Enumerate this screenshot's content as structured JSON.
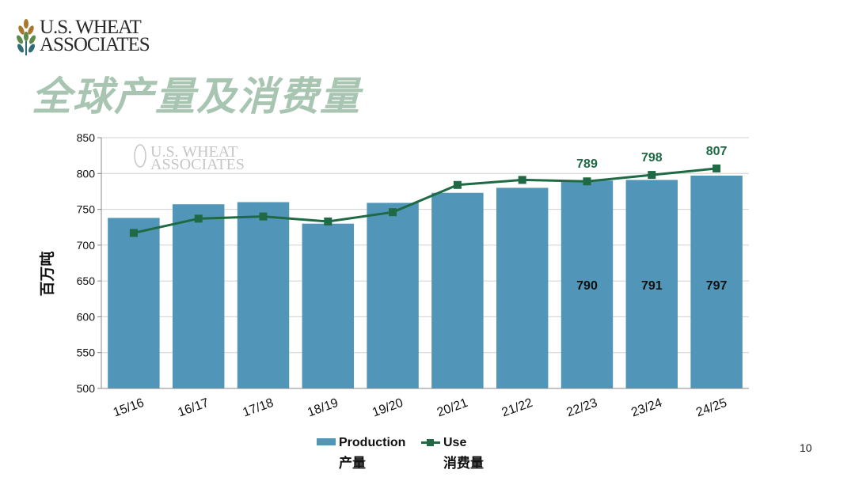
{
  "header": {
    "logo_line1": "U.S. WHEAT",
    "logo_line2": "ASSOCIATES",
    "title": "全球产量及消费量",
    "page_number": "10"
  },
  "chart_data": {
    "type": "bar",
    "title": "全球产量及消费量",
    "ylabel": "百万吨",
    "xlabel": "",
    "ylim": [
      500,
      850
    ],
    "yticks": [
      500,
      550,
      600,
      650,
      700,
      750,
      800,
      850
    ],
    "grid": true,
    "legend_position": "bottom",
    "watermark": [
      "U.S. WHEAT",
      "ASSOCIATES"
    ],
    "categories": [
      "15/16",
      "16/17",
      "17/18",
      "18/19",
      "19/20",
      "20/21",
      "21/22",
      "22/23",
      "23/24",
      "24/25"
    ],
    "series": [
      {
        "name": "Production",
        "name_cn": "产量",
        "kind": "bar",
        "color": "#5195b8",
        "values": [
          738,
          757,
          760,
          730,
          759,
          773,
          780,
          790,
          791,
          797
        ],
        "labels": [
          "",
          "",
          "",
          "",
          "",
          "",
          "",
          "790",
          "791",
          "797"
        ]
      },
      {
        "name": "Use",
        "name_cn": "消费量",
        "kind": "line",
        "color": "#1f6a45",
        "values": [
          717,
          737,
          740,
          733,
          746,
          784,
          791,
          789,
          798,
          807
        ],
        "labels": [
          "",
          "",
          "",
          "",
          "",
          "",
          "",
          "789",
          "798",
          "807"
        ]
      }
    ]
  }
}
